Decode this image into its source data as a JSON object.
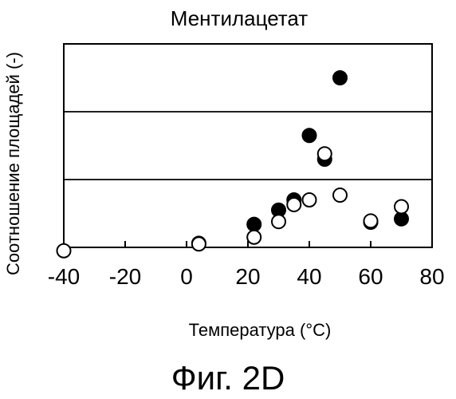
{
  "chart_data": {
    "type": "scatter",
    "title": "Ментилацетат",
    "xlabel": "Температура (°C)",
    "ylabel": "Соотношение площадей (-)",
    "xlim": [
      -40,
      80
    ],
    "ylim": [
      0,
      3
    ],
    "x_ticks": [
      -40,
      -20,
      0,
      20,
      40,
      60,
      80
    ],
    "x_tick_labels": [
      "-40",
      "-20",
      "0",
      "20",
      "40",
      "60",
      "80"
    ],
    "horizontal_lines": [
      1,
      2
    ],
    "series": [
      {
        "marker": "filled-circle",
        "color": "#000000",
        "points": [
          {
            "x": 4,
            "y": 0.06
          },
          {
            "x": 22,
            "y": 0.34
          },
          {
            "x": 30,
            "y": 0.55
          },
          {
            "x": 35,
            "y": 0.7
          },
          {
            "x": 40,
            "y": 1.65
          },
          {
            "x": 45,
            "y": 1.3
          },
          {
            "x": 50,
            "y": 2.5
          },
          {
            "x": 60,
            "y": 0.37
          },
          {
            "x": 70,
            "y": 0.42
          }
        ]
      },
      {
        "marker": "open-circle",
        "color": "#000000",
        "points": [
          {
            "x": -40,
            "y": -0.05
          },
          {
            "x": 4,
            "y": 0.05
          },
          {
            "x": 22,
            "y": 0.15
          },
          {
            "x": 30,
            "y": 0.38
          },
          {
            "x": 35,
            "y": 0.63
          },
          {
            "x": 40,
            "y": 0.7
          },
          {
            "x": 45,
            "y": 1.38
          },
          {
            "x": 50,
            "y": 0.77
          },
          {
            "x": 60,
            "y": 0.39
          },
          {
            "x": 70,
            "y": 0.6
          }
        ]
      }
    ]
  },
  "figure_label": "Фиг. 2D"
}
